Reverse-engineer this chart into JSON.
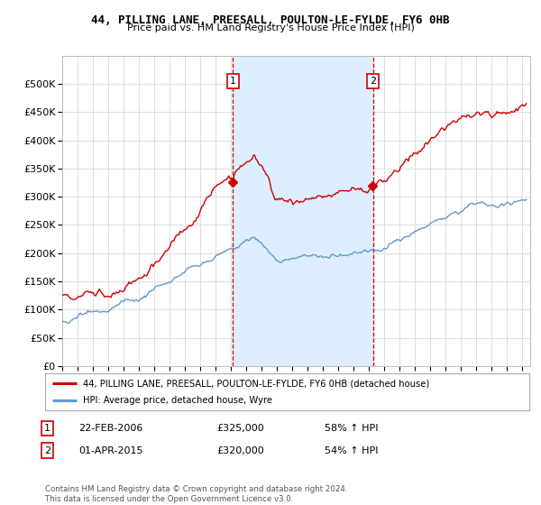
{
  "title": "44, PILLING LANE, PREESALL, POULTON-LE-FYLDE, FY6 0HB",
  "subtitle": "Price paid vs. HM Land Registry's House Price Index (HPI)",
  "xlim_start": 1995.0,
  "xlim_end": 2025.5,
  "ylim": [
    0,
    550000
  ],
  "yticks": [
    0,
    50000,
    100000,
    150000,
    200000,
    250000,
    300000,
    350000,
    400000,
    450000,
    500000
  ],
  "purchase1_x": 2006.13,
  "purchase1_y": 325000,
  "purchase2_x": 2015.25,
  "purchase2_y": 320000,
  "legend_entry1": "44, PILLING LANE, PREESALL, POULTON-LE-FYLDE, FY6 0HB (detached house)",
  "legend_entry2": "HPI: Average price, detached house, Wyre",
  "annotation1_label": "1",
  "annotation1_date": "22-FEB-2006",
  "annotation1_price": "£325,000",
  "annotation1_hpi": "58% ↑ HPI",
  "annotation2_label": "2",
  "annotation2_date": "01-APR-2015",
  "annotation2_price": "£320,000",
  "annotation2_hpi": "54% ↑ HPI",
  "copyright_text": "Contains HM Land Registry data © Crown copyright and database right 2024.\nThis data is licensed under the Open Government Licence v3.0.",
  "line_color_red": "#cc0000",
  "line_color_blue": "#6699cc",
  "fill_color": "#ddeeff",
  "vline_color": "#cc0000",
  "background_color": "#ffffff",
  "grid_color": "#dddddd"
}
